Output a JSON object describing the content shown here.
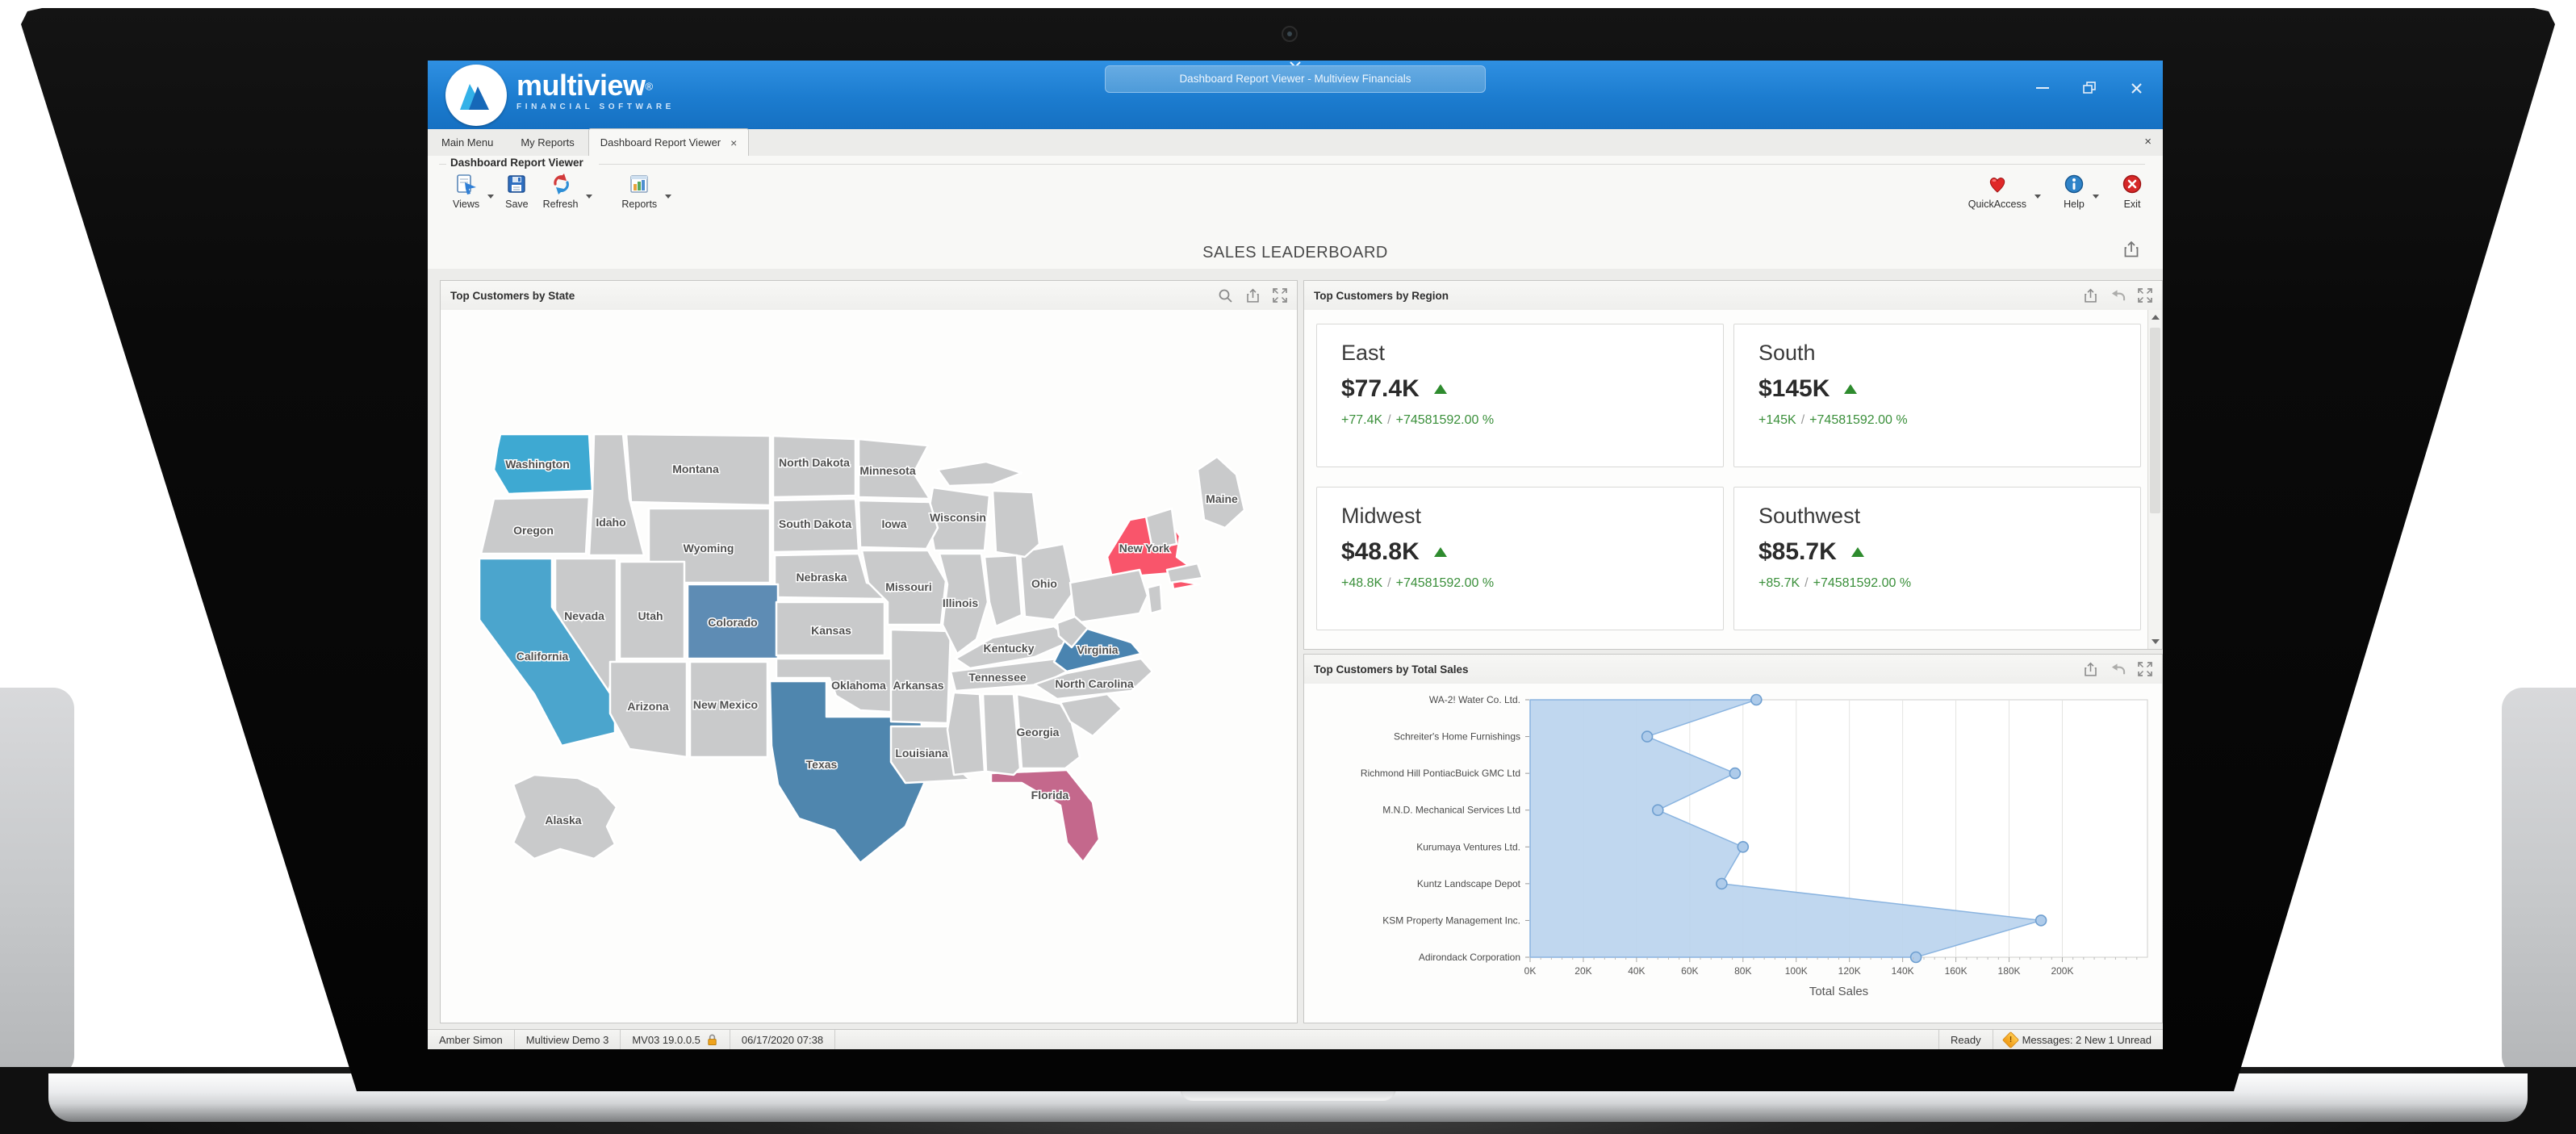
{
  "titlebar": {
    "tab_label": "Dashboard Report Viewer - Multiview Financials"
  },
  "brand": {
    "name": "multiview",
    "registered_mark": "®",
    "tagline": "FINANCIAL SOFTWARE"
  },
  "tab_bar": {
    "tabs": [
      {
        "label": "Main Menu"
      },
      {
        "label": "My Reports"
      },
      {
        "label": "Dashboard Report Viewer"
      }
    ],
    "active_tab_close": "×",
    "bar_close": "×"
  },
  "toolbar": {
    "group_label": "Dashboard Report Viewer",
    "views": "Views",
    "save": "Save",
    "refresh": "Refresh",
    "reports": "Reports",
    "quick_access": "QuickAccess",
    "help": "Help",
    "exit": "Exit"
  },
  "page_title": "SALES LEADERBOARD",
  "panels": {
    "state": {
      "title": "Top Customers by State"
    },
    "region": {
      "title": "Top Customers by Region",
      "divider": "/",
      "cards": [
        {
          "name": "East",
          "value": "$77.4K",
          "delta": "+77.4K",
          "percent": "+74581592.00 %"
        },
        {
          "name": "South",
          "value": "$145K",
          "delta": "+145K",
          "percent": "+74581592.00 %"
        },
        {
          "name": "Midwest",
          "value": "$48.8K",
          "delta": "+48.8K",
          "percent": "+74581592.00 %"
        },
        {
          "name": "Southwest",
          "value": "$85.7K",
          "delta": "+85.7K",
          "percent": "+74581592.00 %"
        }
      ]
    },
    "total_sales": {
      "title": "Top Customers by Total Sales"
    }
  },
  "map": {
    "labels": [
      "Washington",
      "Oregon",
      "California",
      "Nevada",
      "Idaho",
      "Montana",
      "Wyoming",
      "Utah",
      "Colorado",
      "Arizona",
      "New Mexico",
      "North Dakota",
      "South Dakota",
      "Nebraska",
      "Kansas",
      "Oklahoma",
      "Texas",
      "Minnesota",
      "Iowa",
      "Missouri",
      "Arkansas",
      "Louisiana",
      "Wisconsin",
      "Illinois",
      "Ohio",
      "Kentucky",
      "Tennessee",
      "Virginia",
      "North Carolina",
      "Georgia",
      "Florida",
      "New York",
      "Maine",
      "Alaska"
    ],
    "state_colors": {
      "Washington": "#3EA9D2",
      "California": "#4BA5CD",
      "Colorado": "#5E8CB4",
      "Texas": "#4F86AE",
      "Virginia": "#4A84B0",
      "New York": "#F9556B",
      "Florida": "#C4688C"
    },
    "default_fill": "#C9CACB"
  },
  "chart_data": {
    "type": "area",
    "orientation": "horizontal",
    "title": "Top Customers by Total Sales",
    "categories": [
      "WA-2! Water Co. Ltd.",
      "Schreiter's Home Furnishings",
      "Richmond Hill PontiacBuick GMC Ltd",
      "M.N.D. Mechanical Services Ltd",
      "Kurumaya Ventures Ltd.",
      "Kuntz Landscape Depot",
      "KSM Property Management Inc.",
      "Adirondack Corporation"
    ],
    "values": [
      85000,
      44000,
      77000,
      48000,
      80000,
      72000,
      192000,
      145000
    ],
    "xlabel": "Total Sales",
    "xmax": 232000,
    "x_tick_values": [
      0,
      20000,
      40000,
      60000,
      80000,
      100000,
      120000,
      140000,
      160000,
      180000,
      200000
    ],
    "x_tick_labels": [
      "0K",
      "20K",
      "40K",
      "60K",
      "80K",
      "100K",
      "120K",
      "140K",
      "160K",
      "180K",
      "200K"
    ],
    "grid": true,
    "area_color": "#b9d3ed",
    "line_color": "#8ab4e0",
    "point_fill": "#aecbea",
    "point_stroke": "#6f9fd0"
  },
  "status_bar": {
    "user": "Amber Simon",
    "company": "Multiview Demo 3",
    "version": "MV03 19.0.0.5",
    "datetime": "06/17/2020 07:38",
    "status": "Ready",
    "messages": "Messages: 2 New 1 Unread"
  }
}
